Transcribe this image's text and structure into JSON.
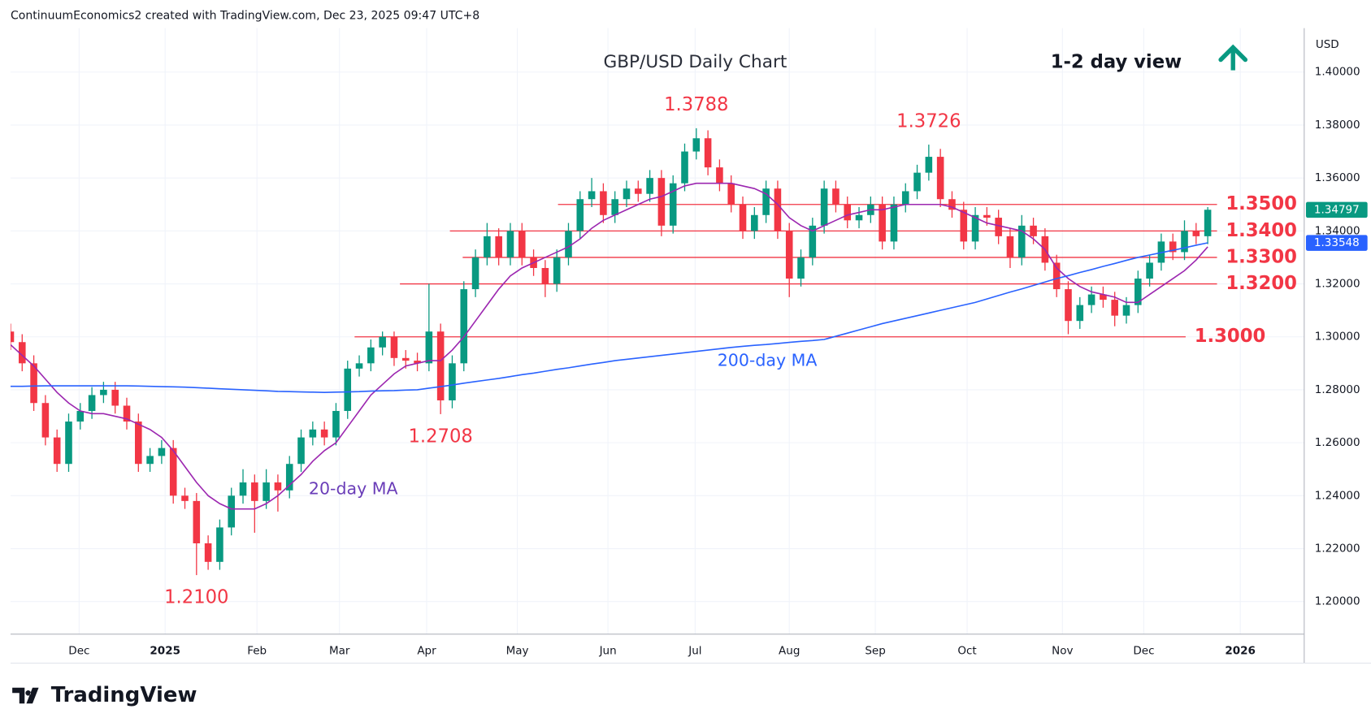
{
  "chart_data": {
    "type": "candlestick",
    "header": "ContinuumEconomics2 created with TradingView.com, Dec 23, 2025 09:47 UTC+8",
    "title": "GBP/USD Daily Chart",
    "view": "1-2 day view",
    "currency": "USD",
    "grid": true,
    "xlim": [
      0,
      111.3
    ],
    "ylim": [
      1.1877,
      1.4166
    ],
    "xticks": [
      {
        "value": 5.9,
        "label": "Dec"
      },
      {
        "value": 13.3,
        "label": "2025"
      },
      {
        "value": 21.2,
        "label": "Feb"
      },
      {
        "value": 28.3,
        "label": "Mar"
      },
      {
        "value": 35.8,
        "label": "Apr"
      },
      {
        "value": 43.6,
        "label": "May"
      },
      {
        "value": 51.4,
        "label": "Jun"
      },
      {
        "value": 58.9,
        "label": "Jul"
      },
      {
        "value": 67,
        "label": "Aug"
      },
      {
        "value": 74.4,
        "label": "Sep"
      },
      {
        "value": 82.3,
        "label": "Oct"
      },
      {
        "value": 90.5,
        "label": "Nov"
      },
      {
        "value": 97.5,
        "label": "Dec"
      },
      {
        "value": 105.8,
        "label": "2026"
      }
    ],
    "yticks": [
      {
        "value": 1.2,
        "label": "1.20000"
      },
      {
        "value": 1.22,
        "label": "1.22000"
      },
      {
        "value": 1.24,
        "label": "1.24000"
      },
      {
        "value": 1.26,
        "label": "1.26000"
      },
      {
        "value": 1.28,
        "label": "1.28000"
      },
      {
        "value": 1.3,
        "label": "1.30000"
      },
      {
        "value": 1.32,
        "label": "1.32000"
      },
      {
        "value": 1.34,
        "label": "1.34000"
      },
      {
        "value": 1.36,
        "label": "1.36000"
      },
      {
        "value": 1.38,
        "label": "1.38000"
      },
      {
        "value": 1.4,
        "label": "1.40000"
      }
    ],
    "candles": {
      "up_color": "#089981",
      "down_color": "#f23645",
      "open": [
        1.302,
        1.298,
        1.29,
        1.275,
        1.262,
        1.252,
        1.268,
        1.272,
        1.278,
        1.28,
        1.274,
        1.268,
        1.252,
        1.255,
        1.258,
        1.24,
        1.238,
        1.222,
        1.215,
        1.228,
        1.24,
        1.245,
        1.238,
        1.245,
        1.242,
        1.252,
        1.262,
        1.265,
        1.262,
        1.272,
        1.288,
        1.29,
        1.296,
        1.3,
        1.292,
        1.291,
        1.29,
        1.302,
        1.276,
        1.29,
        1.318,
        1.33,
        1.338,
        1.33,
        1.34,
        1.33,
        1.326,
        1.32,
        1.33,
        1.34,
        1.352,
        1.355,
        1.346,
        1.352,
        1.356,
        1.354,
        1.36,
        1.342,
        1.358,
        1.37,
        1.375,
        1.364,
        1.358,
        1.35,
        1.34,
        1.346,
        1.356,
        1.34,
        1.322,
        1.33,
        1.342,
        1.356,
        1.35,
        1.344,
        1.346,
        1.35,
        1.336,
        1.35,
        1.355,
        1.362,
        1.368,
        1.352,
        1.348,
        1.336,
        1.346,
        1.345,
        1.338,
        1.33,
        1.342,
        1.338,
        1.328,
        1.318,
        1.306,
        1.312,
        1.316,
        1.314,
        1.308,
        1.312,
        1.322,
        1.328,
        1.336,
        1.332,
        1.34,
        1.338
      ],
      "high": [
        1.305,
        1.301,
        1.293,
        1.278,
        1.265,
        1.271,
        1.275,
        1.281,
        1.283,
        1.283,
        1.277,
        1.271,
        1.258,
        1.261,
        1.261,
        1.243,
        1.241,
        1.225,
        1.231,
        1.243,
        1.25,
        1.248,
        1.25,
        1.248,
        1.255,
        1.265,
        1.268,
        1.268,
        1.275,
        1.291,
        1.293,
        1.299,
        1.302,
        1.302,
        1.295,
        1.294,
        1.32,
        1.305,
        1.293,
        1.321,
        1.333,
        1.343,
        1.341,
        1.343,
        1.343,
        1.333,
        1.329,
        1.333,
        1.343,
        1.355,
        1.36,
        1.358,
        1.355,
        1.359,
        1.359,
        1.363,
        1.363,
        1.361,
        1.373,
        1.3788,
        1.378,
        1.367,
        1.361,
        1.353,
        1.349,
        1.359,
        1.359,
        1.343,
        1.333,
        1.345,
        1.359,
        1.359,
        1.353,
        1.349,
        1.353,
        1.353,
        1.353,
        1.358,
        1.365,
        1.3726,
        1.371,
        1.355,
        1.351,
        1.349,
        1.349,
        1.348,
        1.341,
        1.346,
        1.345,
        1.341,
        1.331,
        1.321,
        1.315,
        1.319,
        1.319,
        1.317,
        1.315,
        1.325,
        1.331,
        1.339,
        1.339,
        1.344,
        1.343,
        1.349
      ],
      "low": [
        1.295,
        1.287,
        1.272,
        1.259,
        1.249,
        1.249,
        1.265,
        1.269,
        1.275,
        1.271,
        1.265,
        1.249,
        1.249,
        1.252,
        1.237,
        1.235,
        1.21,
        1.212,
        1.212,
        1.225,
        1.237,
        1.226,
        1.235,
        1.234,
        1.239,
        1.249,
        1.259,
        1.259,
        1.259,
        1.269,
        1.285,
        1.287,
        1.293,
        1.289,
        1.288,
        1.287,
        1.287,
        1.2708,
        1.273,
        1.287,
        1.315,
        1.327,
        1.327,
        1.327,
        1.327,
        1.323,
        1.315,
        1.317,
        1.327,
        1.337,
        1.349,
        1.343,
        1.343,
        1.349,
        1.351,
        1.351,
        1.338,
        1.339,
        1.355,
        1.367,
        1.361,
        1.355,
        1.347,
        1.337,
        1.337,
        1.343,
        1.337,
        1.315,
        1.319,
        1.327,
        1.339,
        1.347,
        1.341,
        1.341,
        1.343,
        1.333,
        1.333,
        1.347,
        1.352,
        1.359,
        1.349,
        1.345,
        1.333,
        1.333,
        1.342,
        1.335,
        1.326,
        1.327,
        1.335,
        1.325,
        1.315,
        1.301,
        1.303,
        1.309,
        1.311,
        1.304,
        1.305,
        1.309,
        1.319,
        1.325,
        1.329,
        1.329,
        1.335,
        1.335
      ],
      "close": [
        1.298,
        1.29,
        1.275,
        1.262,
        1.252,
        1.268,
        1.272,
        1.278,
        1.28,
        1.274,
        1.268,
        1.252,
        1.255,
        1.258,
        1.24,
        1.238,
        1.222,
        1.215,
        1.228,
        1.24,
        1.245,
        1.238,
        1.245,
        1.242,
        1.252,
        1.262,
        1.265,
        1.262,
        1.272,
        1.288,
        1.29,
        1.296,
        1.3,
        1.292,
        1.291,
        1.29,
        1.302,
        1.276,
        1.29,
        1.318,
        1.33,
        1.338,
        1.33,
        1.34,
        1.33,
        1.326,
        1.32,
        1.33,
        1.34,
        1.352,
        1.355,
        1.346,
        1.352,
        1.356,
        1.354,
        1.36,
        1.342,
        1.358,
        1.37,
        1.375,
        1.364,
        1.358,
        1.35,
        1.34,
        1.346,
        1.356,
        1.34,
        1.322,
        1.33,
        1.342,
        1.356,
        1.35,
        1.344,
        1.346,
        1.35,
        1.336,
        1.35,
        1.355,
        1.362,
        1.368,
        1.352,
        1.348,
        1.336,
        1.346,
        1.345,
        1.338,
        1.33,
        1.342,
        1.338,
        1.328,
        1.318,
        1.306,
        1.312,
        1.316,
        1.314,
        1.308,
        1.312,
        1.322,
        1.328,
        1.336,
        1.332,
        1.34,
        1.338,
        1.348
      ]
    },
    "series": [
      {
        "name": "20-day MA",
        "color": "#9c27b0",
        "label_color": "#6a3db8",
        "values": [
          1.297,
          1.293,
          1.289,
          1.284,
          1.279,
          1.275,
          1.272,
          1.271,
          1.271,
          1.27,
          1.269,
          1.267,
          1.265,
          1.262,
          1.257,
          1.251,
          1.245,
          1.24,
          1.237,
          1.235,
          1.235,
          1.235,
          1.237,
          1.24,
          1.244,
          1.248,
          1.253,
          1.257,
          1.26,
          1.266,
          1.272,
          1.278,
          1.282,
          1.286,
          1.289,
          1.29,
          1.291,
          1.291,
          1.295,
          1.3,
          1.306,
          1.312,
          1.318,
          1.323,
          1.326,
          1.328,
          1.33,
          1.332,
          1.334,
          1.337,
          1.341,
          1.344,
          1.346,
          1.348,
          1.35,
          1.352,
          1.353,
          1.355,
          1.357,
          1.358,
          1.358,
          1.358,
          1.358,
          1.357,
          1.356,
          1.354,
          1.35,
          1.345,
          1.342,
          1.34,
          1.342,
          1.344,
          1.346,
          1.347,
          1.348,
          1.348,
          1.349,
          1.35,
          1.35,
          1.35,
          1.35,
          1.349,
          1.347,
          1.345,
          1.343,
          1.342,
          1.341,
          1.34,
          1.337,
          1.333,
          1.326,
          1.322,
          1.319,
          1.317,
          1.316,
          1.315,
          1.313,
          1.313,
          1.316,
          1.319,
          1.322,
          1.325,
          1.329,
          1.334
        ]
      },
      {
        "name": "200-day MA",
        "color": "#2962ff",
        "label_color": "#2962ff",
        "values": [
          1.2813,
          1.2813,
          1.2814,
          1.2815,
          1.2815,
          1.2815,
          1.2815,
          1.2815,
          1.2815,
          1.2815,
          1.2815,
          1.2814,
          1.2813,
          1.2812,
          1.2811,
          1.281,
          1.2808,
          1.2806,
          1.2804,
          1.2802,
          1.28,
          1.2798,
          1.2796,
          1.2794,
          1.2793,
          1.2792,
          1.2791,
          1.279,
          1.2791,
          1.2792,
          1.2793,
          1.2795,
          1.2796,
          1.2797,
          1.2799,
          1.28,
          1.2806,
          1.2812,
          1.2818,
          1.2825,
          1.2831,
          1.2837,
          1.2843,
          1.285,
          1.2857,
          1.2863,
          1.287,
          1.2877,
          1.2883,
          1.289,
          1.2897,
          1.2903,
          1.291,
          1.2915,
          1.292,
          1.2925,
          1.293,
          1.2935,
          1.294,
          1.2945,
          1.295,
          1.2955,
          1.296,
          1.2964,
          1.2968,
          1.2971,
          1.2975,
          1.2979,
          1.2983,
          1.2986,
          1.299,
          1.3002,
          1.3014,
          1.3026,
          1.3038,
          1.305,
          1.306,
          1.307,
          1.308,
          1.309,
          1.31,
          1.311,
          1.312,
          1.313,
          1.3143,
          1.3156,
          1.3169,
          1.3181,
          1.3194,
          1.3207,
          1.322,
          1.3231,
          1.3243,
          1.3254,
          1.3266,
          1.3277,
          1.3289,
          1.33,
          1.3309,
          1.3318,
          1.3327,
          1.3336,
          1.3346,
          1.3355
        ]
      }
    ],
    "levels": [
      {
        "value": 1.35,
        "label": "1.3500",
        "start": 47.1,
        "end": 103.8
      },
      {
        "value": 1.34,
        "label": "1.3400",
        "start": 37.8,
        "end": 103.8
      },
      {
        "value": 1.33,
        "label": "1.3300",
        "start": 38.9,
        "end": 103.8
      },
      {
        "value": 1.32,
        "label": "1.3200",
        "start": 33.5,
        "end": 103.8
      },
      {
        "value": 1.3,
        "label": "1.3000",
        "start": 29.6,
        "end": 101.1
      }
    ],
    "level_color": "#f23645",
    "annotations": [
      {
        "value": 1.3788,
        "label": "1.3788",
        "x": 59,
        "position": "above"
      },
      {
        "value": 1.3726,
        "label": "1.3726",
        "x": 79,
        "position": "above"
      },
      {
        "value": 1.2708,
        "label": "1.2708",
        "x": 37,
        "position": "below"
      },
      {
        "value": 1.21,
        "label": "1.2100",
        "x": 16,
        "position": "below"
      }
    ],
    "badges": [
      {
        "value": 1.34797,
        "label": "1.34797",
        "color": "#089981"
      },
      {
        "value": 1.33548,
        "label": "1.33548",
        "color": "#2962ff"
      }
    ]
  },
  "footer": {
    "brand": "TradingView"
  }
}
